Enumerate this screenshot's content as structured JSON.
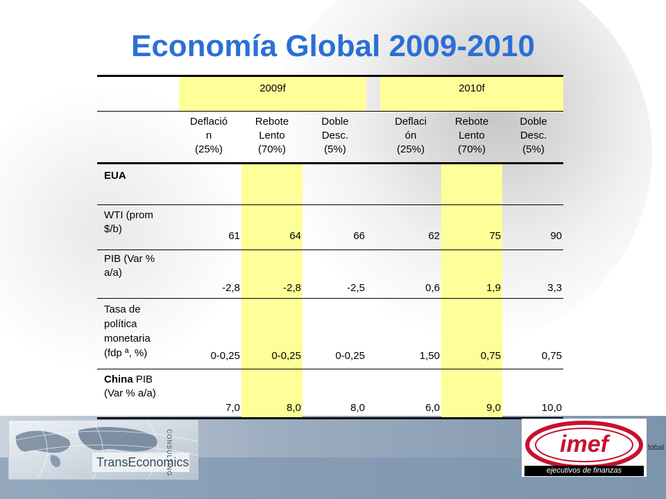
{
  "slide": {
    "title": "Economía Global 2009-2010"
  },
  "table": {
    "year_headers": [
      "2009f",
      "2010f"
    ],
    "scenarios_2009": [
      {
        "l1": "Deflació",
        "l2": "n",
        "l3": "(25%)"
      },
      {
        "l1": "Rebote",
        "l2": "Lento",
        "l3": "(70%)"
      },
      {
        "l1": "Doble",
        "l2": "Desc.",
        "l3": "(5%)"
      }
    ],
    "scenarios_2010": [
      {
        "l1": "Deflaci",
        "l2": "ón",
        "l3": "(25%)"
      },
      {
        "l1": "Rebote",
        "l2": "Lento",
        "l3": "(70%)"
      },
      {
        "l1": "Doble",
        "l2": "Desc.",
        "l3": "(5%)"
      }
    ],
    "rows": [
      {
        "lines": [
          "EUA"
        ],
        "bold": true,
        "values": [
          "",
          "",
          "",
          "",
          "",
          ""
        ]
      },
      {
        "lines": [
          "WTI (prom",
          "$/b)"
        ],
        "values": [
          "61",
          "64",
          "66",
          "62",
          "75",
          "90"
        ]
      },
      {
        "lines": [
          "PIB (Var %",
          "a/a)"
        ],
        "values": [
          "-2,8",
          "-2,8",
          "-2,5",
          "0,6",
          "1,9",
          "3,3"
        ]
      },
      {
        "lines": [
          "Tasa de",
          "política",
          "monetaria",
          "(fdp ª, %)"
        ],
        "values": [
          "0-0,25",
          "0-0,25",
          "0-0,25",
          "1,50",
          "0,75",
          "0,75"
        ]
      },
      {
        "lines": [
          "(Var % a/a)"
        ],
        "bold_prefix": "China",
        "prefix_rest": " PIB",
        "values": [
          "7,0",
          "8,0",
          "8,0",
          "6,0",
          "9,0",
          "10,0"
        ]
      }
    ]
  },
  "footer": {
    "left_logo": {
      "text": "TransEconomics",
      "side_text": "CONSULTING"
    },
    "right_logo": {
      "text": "imef",
      "tagline": "ejecutivos de finanzas"
    },
    "trailing_text": "lobal"
  },
  "colors": {
    "title": "#2b6fd6",
    "highlight": "#ffff99",
    "imef_red": "#c8102e"
  }
}
